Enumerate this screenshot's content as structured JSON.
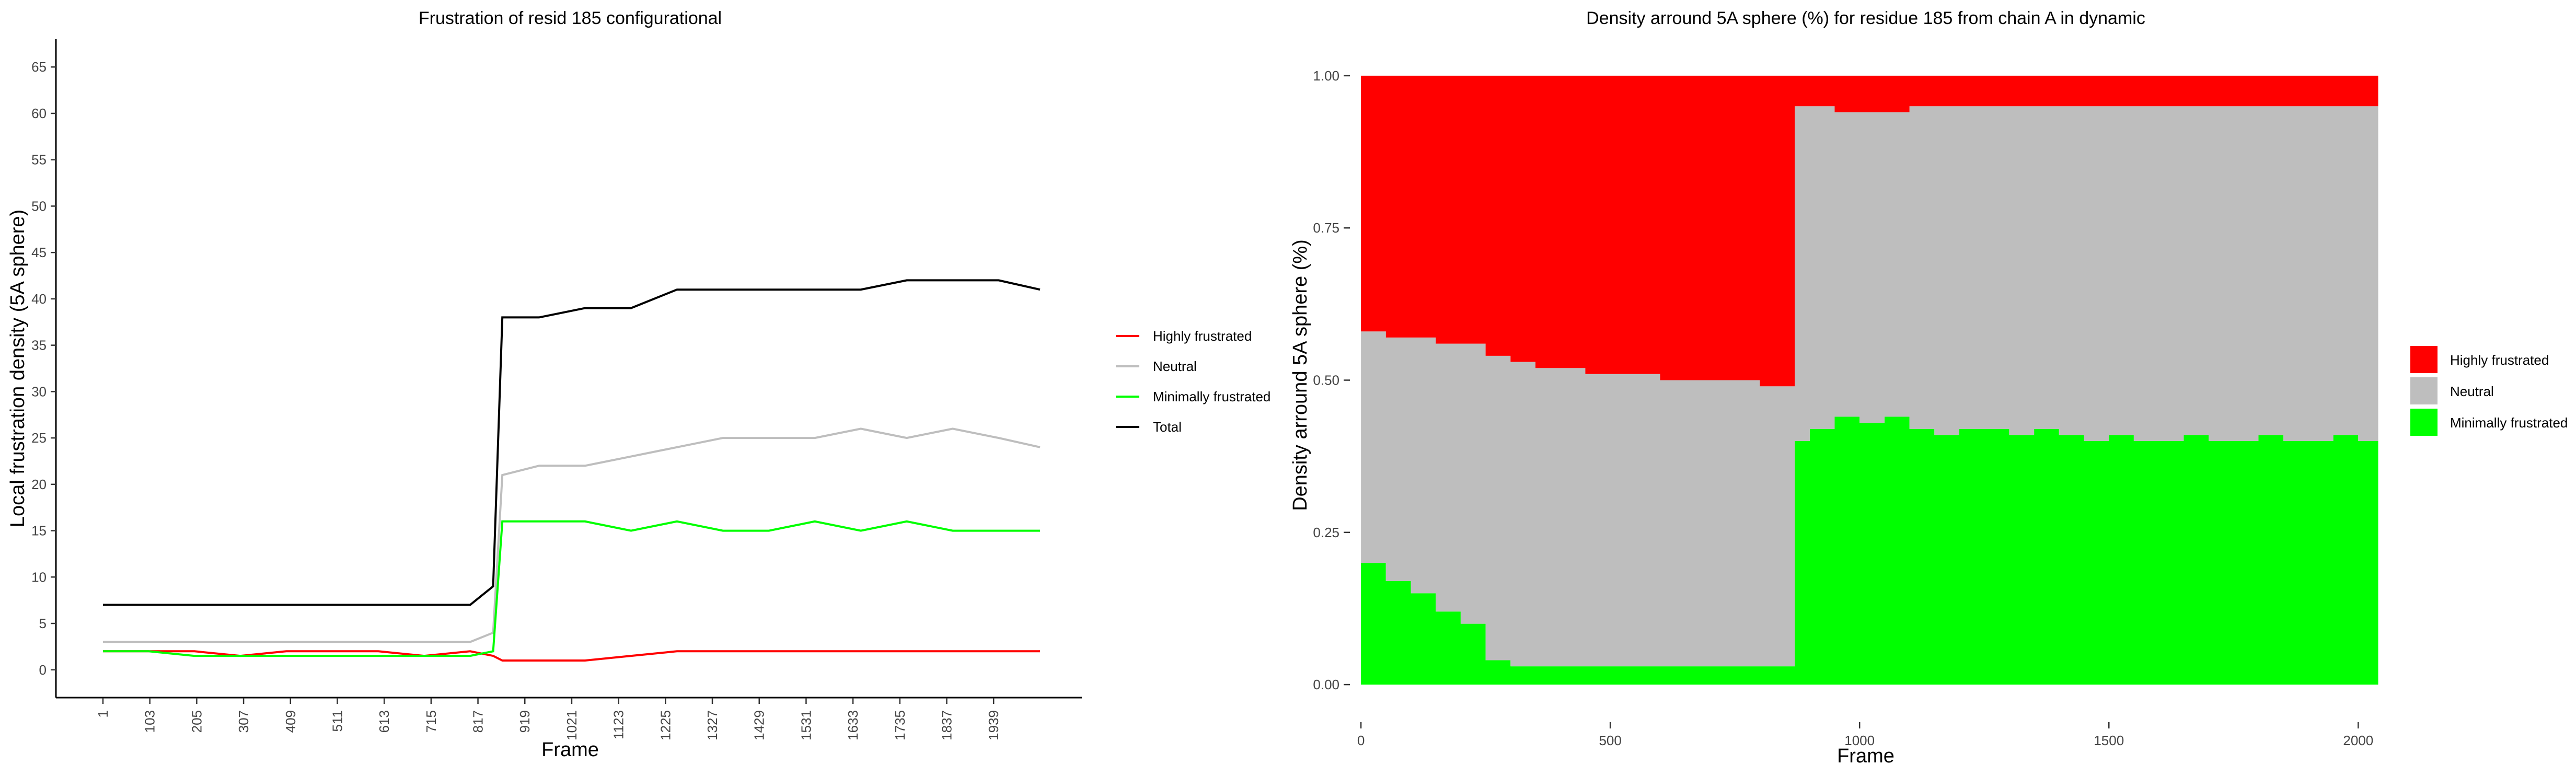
{
  "chart_data": [
    {
      "type": "line",
      "title": "Frustration of resid 185 configurational",
      "xlabel": "Frame",
      "ylabel": "Local frustration density (5A sphere)",
      "x_tick_labels": [
        "1",
        "103",
        "205",
        "307",
        "409",
        "511",
        "613",
        "715",
        "817",
        "919",
        "1021",
        "1123",
        "1225",
        "1327",
        "1429",
        "1531",
        "1633",
        "1735",
        "1837",
        "1939"
      ],
      "xlim": [
        1,
        2040
      ],
      "y_ticks": [
        0,
        5,
        10,
        15,
        20,
        25,
        30,
        35,
        40,
        45,
        50,
        55,
        60,
        65
      ],
      "ylim": [
        -3,
        68
      ],
      "grid": false,
      "legend_position": "right",
      "series": [
        {
          "name": "Highly frustrated",
          "color": "#ff0000",
          "x": [
            1,
            100,
            200,
            300,
            400,
            500,
            600,
            700,
            800,
            850,
            870,
            950,
            1050,
            1150,
            1250,
            1350,
            1450,
            1550,
            1650,
            1750,
            1850,
            1950,
            2040
          ],
          "y": [
            2,
            2,
            2,
            1.5,
            2,
            2,
            2,
            1.5,
            2,
            1.5,
            1,
            1,
            1,
            1.5,
            2,
            2,
            2,
            2,
            2,
            2,
            2,
            2,
            2
          ]
        },
        {
          "name": "Neutral",
          "color": "#bebebe",
          "x": [
            1,
            100,
            200,
            300,
            400,
            500,
            600,
            700,
            800,
            850,
            870,
            950,
            1050,
            1150,
            1250,
            1350,
            1450,
            1550,
            1650,
            1750,
            1850,
            1950,
            2040
          ],
          "y": [
            3,
            3,
            3,
            3,
            3,
            3,
            3,
            3,
            3,
            4,
            21,
            22,
            22,
            23,
            24,
            25,
            25,
            25,
            26,
            25,
            26,
            25,
            24
          ]
        },
        {
          "name": "Minimally frustrated",
          "color": "#00ff00",
          "x": [
            1,
            100,
            200,
            300,
            400,
            500,
            600,
            700,
            800,
            850,
            870,
            950,
            1050,
            1150,
            1250,
            1350,
            1450,
            1550,
            1650,
            1750,
            1850,
            1950,
            2040
          ],
          "y": [
            2,
            2,
            1.5,
            1.5,
            1.5,
            1.5,
            1.5,
            1.5,
            1.5,
            2,
            16,
            16,
            16,
            15,
            16,
            15,
            15,
            16,
            15,
            16,
            15,
            15,
            15
          ]
        },
        {
          "name": "Total",
          "color": "#000000",
          "x": [
            1,
            100,
            200,
            300,
            400,
            500,
            600,
            700,
            800,
            850,
            870,
            950,
            1050,
            1150,
            1250,
            1350,
            1450,
            1550,
            1650,
            1750,
            1850,
            1950,
            2040
          ],
          "y": [
            7,
            7,
            7,
            7,
            7,
            7,
            7,
            7,
            7,
            9,
            38,
            38,
            39,
            39,
            41,
            41,
            41,
            41,
            41,
            42,
            42,
            42,
            41
          ]
        }
      ]
    },
    {
      "type": "area",
      "stacked": "fill",
      "title": "Density arround 5A sphere (%) for residue 185 from chain A in dynamic",
      "xlabel": "Frame",
      "ylabel": "Density arround 5A sphere (%)",
      "x_ticks": [
        0,
        500,
        1000,
        1500,
        2000
      ],
      "y_tick_labels": [
        "0.00",
        "0.25",
        "0.50",
        "0.75",
        "1.00"
      ],
      "xlim": [
        -20,
        2050
      ],
      "ylim": [
        -0.06,
        1.06
      ],
      "grid": false,
      "legend_position": "right",
      "x": [
        0,
        50,
        100,
        150,
        200,
        250,
        300,
        350,
        400,
        450,
        500,
        550,
        600,
        650,
        700,
        750,
        800,
        850,
        870,
        900,
        950,
        1000,
        1050,
        1100,
        1150,
        1200,
        1250,
        1300,
        1350,
        1400,
        1450,
        1500,
        1550,
        1600,
        1650,
        1700,
        1750,
        1800,
        1850,
        1900,
        1950,
        2000,
        2040
      ],
      "series": [
        {
          "name": "Minimally frustrated",
          "color": "#00ff00",
          "values": [
            0.2,
            0.17,
            0.15,
            0.12,
            0.1,
            0.04,
            0.03,
            0.03,
            0.03,
            0.03,
            0.03,
            0.03,
            0.03,
            0.03,
            0.03,
            0.03,
            0.03,
            0.03,
            0.4,
            0.42,
            0.44,
            0.43,
            0.44,
            0.42,
            0.41,
            0.42,
            0.42,
            0.41,
            0.42,
            0.41,
            0.4,
            0.41,
            0.4,
            0.4,
            0.41,
            0.4,
            0.4,
            0.41,
            0.4,
            0.4,
            0.41,
            0.4,
            0.4
          ]
        },
        {
          "name": "Neutral",
          "color": "#bebebe",
          "values": [
            0.38,
            0.4,
            0.42,
            0.44,
            0.46,
            0.5,
            0.5,
            0.49,
            0.49,
            0.48,
            0.48,
            0.48,
            0.47,
            0.47,
            0.47,
            0.47,
            0.46,
            0.46,
            0.55,
            0.53,
            0.5,
            0.51,
            0.5,
            0.53,
            0.54,
            0.53,
            0.53,
            0.54,
            0.53,
            0.54,
            0.55,
            0.54,
            0.55,
            0.55,
            0.54,
            0.55,
            0.55,
            0.54,
            0.55,
            0.55,
            0.54,
            0.55,
            0.55
          ]
        },
        {
          "name": "Highly frustrated",
          "color": "#ff0000",
          "values": [
            0.42,
            0.43,
            0.43,
            0.44,
            0.44,
            0.46,
            0.47,
            0.48,
            0.48,
            0.49,
            0.49,
            0.49,
            0.5,
            0.5,
            0.5,
            0.5,
            0.51,
            0.51,
            0.05,
            0.05,
            0.06,
            0.06,
            0.06,
            0.05,
            0.05,
            0.05,
            0.05,
            0.05,
            0.05,
            0.05,
            0.05,
            0.05,
            0.05,
            0.05,
            0.05,
            0.05,
            0.05,
            0.05,
            0.05,
            0.05,
            0.05,
            0.05,
            0.05
          ]
        }
      ],
      "legend_order": [
        "Highly frustrated",
        "Neutral",
        "Minimally frustrated"
      ]
    }
  ]
}
